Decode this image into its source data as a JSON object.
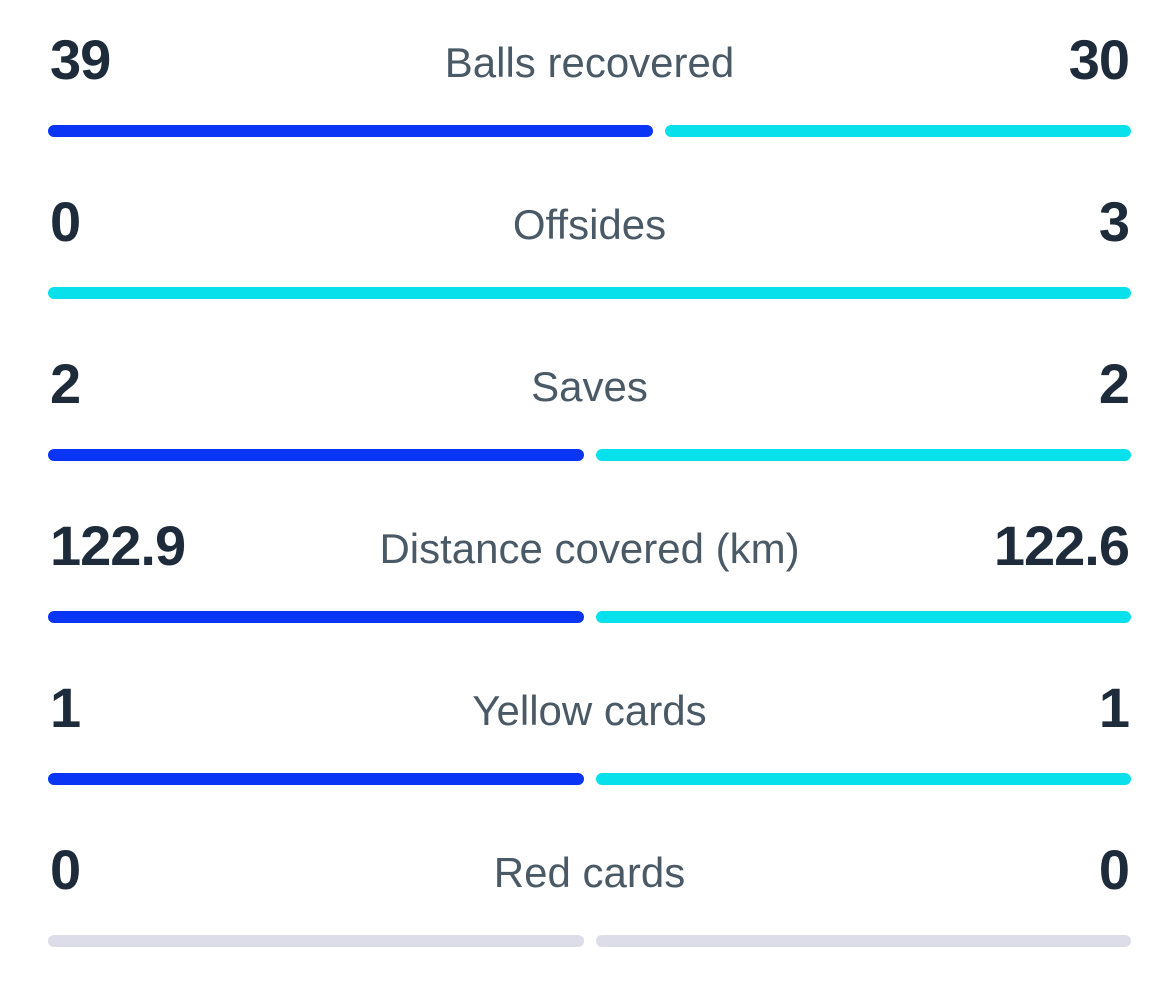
{
  "colors": {
    "home_bar": "#0a35f5",
    "away_bar": "#08e0ec",
    "empty_bar": "#dcdde8",
    "value_text": "#1d2b3a",
    "label_text": "#4a5966"
  },
  "stats": [
    {
      "label": "Balls recovered",
      "home": "39",
      "away": "30",
      "home_share": 0.565
    },
    {
      "label": "Offsides",
      "home": "0",
      "away": "3",
      "home_share": 0
    },
    {
      "label": "Saves",
      "home": "2",
      "away": "2",
      "home_share": 0.5
    },
    {
      "label": "Distance covered (km)",
      "home": "122.9",
      "away": "122.6",
      "home_share": 0.5
    },
    {
      "label": "Yellow cards",
      "home": "1",
      "away": "1",
      "home_share": 0.5
    },
    {
      "label": "Red cards",
      "home": "0",
      "away": "0",
      "home_share": 0.5,
      "empty": true
    }
  ]
}
